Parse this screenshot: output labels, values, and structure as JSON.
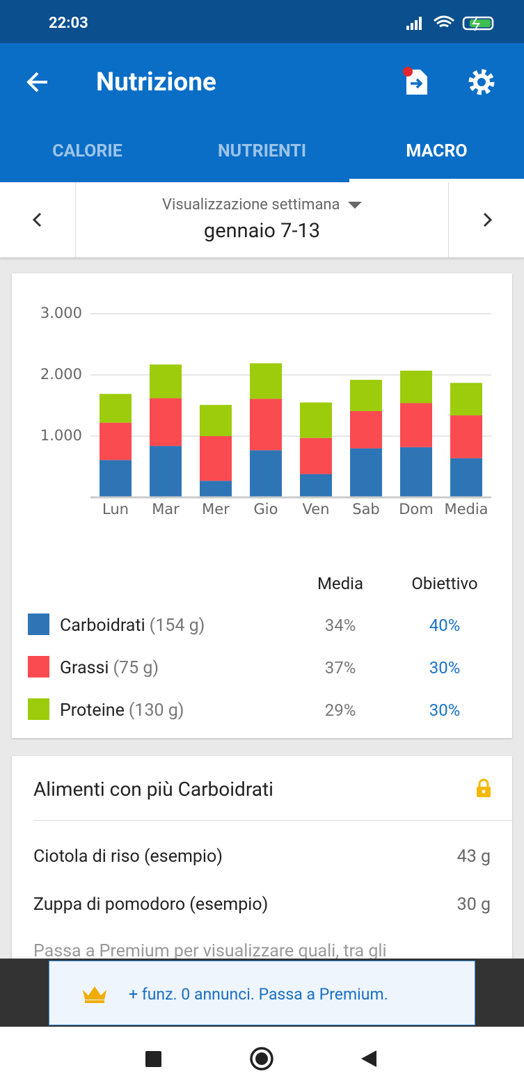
{
  "status_bar": {
    "time": "22:03"
  },
  "app_bar": {
    "title": "Nutrizione"
  },
  "tabs": [
    "CALORIE",
    "NUTRIENTI",
    "MACRO"
  ],
  "week_selector": {
    "label": "Visualizzazione settimana",
    "range": "gennaio 7-13"
  },
  "chart_data": {
    "type": "bar",
    "stacked": true,
    "categories": [
      "Lun",
      "Mar",
      "Mer",
      "Gio",
      "Ven",
      "Sab",
      "Dom",
      "Media"
    ],
    "series": [
      {
        "name": "Carboidrati",
        "color": "#2e75b6",
        "values": [
          610,
          840,
          270,
          770,
          380,
          800,
          820,
          640
        ]
      },
      {
        "name": "Grassi",
        "color": "#fa4b50",
        "values": [
          610,
          780,
          730,
          840,
          590,
          610,
          720,
          700
        ]
      },
      {
        "name": "Proteine",
        "color": "#9ccc0b",
        "values": [
          470,
          550,
          510,
          580,
          580,
          510,
          530,
          530
        ]
      }
    ],
    "ylim": [
      0,
      3000
    ],
    "yticks": [
      {
        "value": 1000,
        "label": "1.000"
      },
      {
        "value": 2000,
        "label": "2.000"
      },
      {
        "value": 3000,
        "label": "3.000"
      }
    ],
    "grid": true
  },
  "macro_table": {
    "headers": [
      "Media",
      "Obiettivo"
    ],
    "rows": [
      {
        "amount": "(154 g)",
        "average": "34%",
        "goal": "40%"
      },
      {
        "amount": "(75 g)",
        "average": "37%",
        "goal": "30%"
      },
      {
        "amount": "(130 g)",
        "average": "29%",
        "goal": "30%"
      }
    ]
  },
  "top_foods": {
    "title": "Alimenti con più Carboidrati",
    "items": [
      {
        "name": "Ciotola di riso (esempio)",
        "amount": "43 g"
      },
      {
        "name": "Zuppa di pomodoro (esempio)",
        "amount": "30 g"
      }
    ],
    "note": "Passa a Premium per visualizzare quali, tra gli"
  },
  "banner": {
    "text": "+ funz. 0 annunci. Passa a Premium."
  }
}
